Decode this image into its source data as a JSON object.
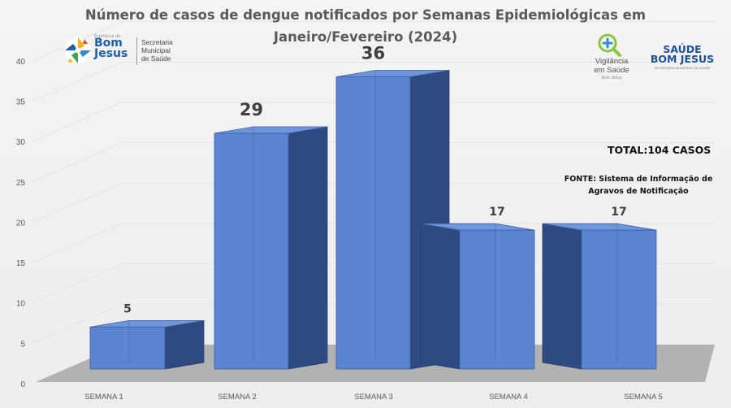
{
  "title_line1": "Número de casos  de dengue notificados por Semanas Epidemiológicas em",
  "title_line2": "Janeiro/Fevereiro (2024)",
  "logos": {
    "bom_jesus_prefix": "Prefeitura de",
    "bom_jesus_line1": "Bom",
    "bom_jesus_line2": "Jesus",
    "secretaria_line1": "Secretaria",
    "secretaria_line2": "Municipal",
    "secretaria_line3": "de Saúde",
    "vigilancia_line1": "Vigilância",
    "vigilancia_line2": "em Saúde",
    "vigilancia_line3": "Bom Jesus",
    "saude_line1": "SAÚDE",
    "saude_line2": "BOM JESUS",
    "saude_line3": "SECRETARIA MUNICIPAL DE SAÚDE"
  },
  "total_text": "TOTAL:104 CASOS",
  "fonte_line1": "FONTE: Sistema de Informação de",
  "fonte_line2": "Agravos de Notificação",
  "colors": {
    "bar_front": "#5b84d2",
    "bar_side": "#2e4a80",
    "bar_top": "#6f96dc",
    "floor": "#b2b2b2",
    "grid": "#e2e2e2",
    "axis_text": "#595959"
  },
  "chart_data": {
    "type": "bar",
    "categories": [
      "SEMANA 1",
      "SEMANA 2",
      "SEMANA 3",
      "SEMANA 4",
      "SEMANA 5"
    ],
    "values": [
      5,
      29,
      36,
      17,
      17
    ],
    "data_labels": [
      "5",
      "29",
      "36",
      "17",
      "17"
    ],
    "ylim": [
      0,
      40
    ],
    "yticks": [
      0,
      5,
      10,
      15,
      20,
      25,
      30,
      35,
      40
    ],
    "grid": true,
    "style": "3d-column"
  }
}
